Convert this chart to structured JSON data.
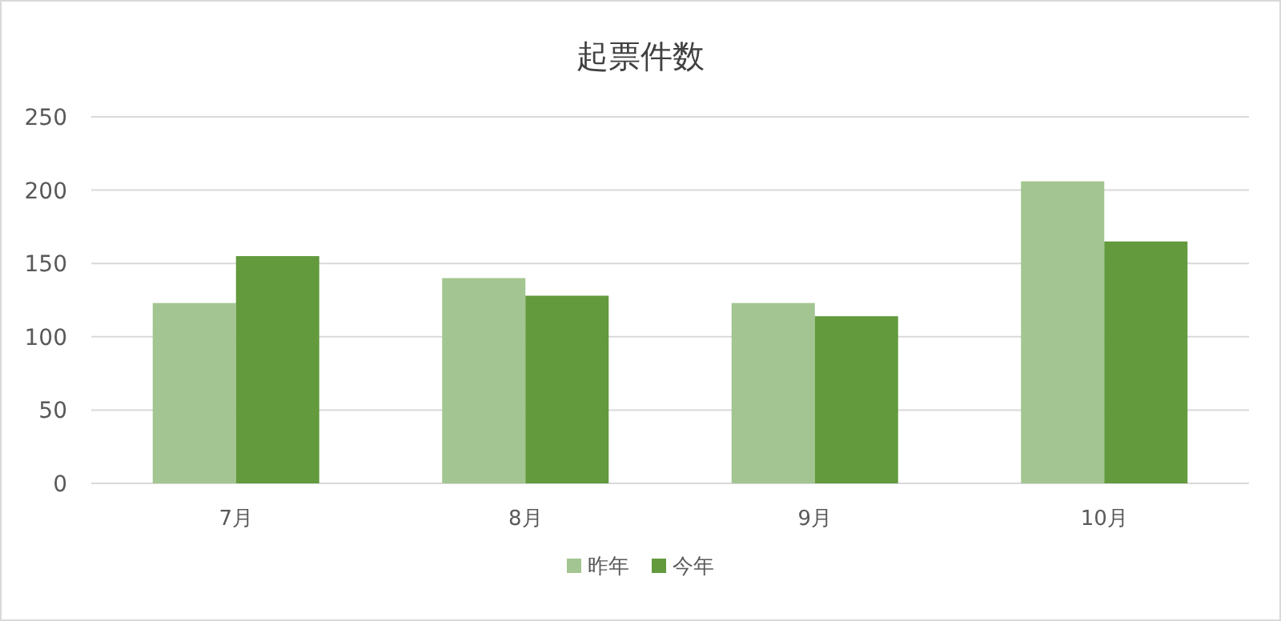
{
  "chart_data": {
    "type": "bar",
    "title": "起票件数",
    "categories": [
      "7月",
      "8月",
      "9月",
      "10月"
    ],
    "series": [
      {
        "name": "昨年",
        "color": "#a3c591",
        "values": [
          123,
          140,
          123,
          206
        ]
      },
      {
        "name": "今年",
        "color": "#629a3d",
        "values": [
          155,
          128,
          114,
          165
        ]
      }
    ],
    "ylim": [
      0,
      250
    ],
    "yticks": [
      0,
      50,
      100,
      150,
      200,
      250
    ],
    "grid": "y",
    "legend": "bottom"
  }
}
